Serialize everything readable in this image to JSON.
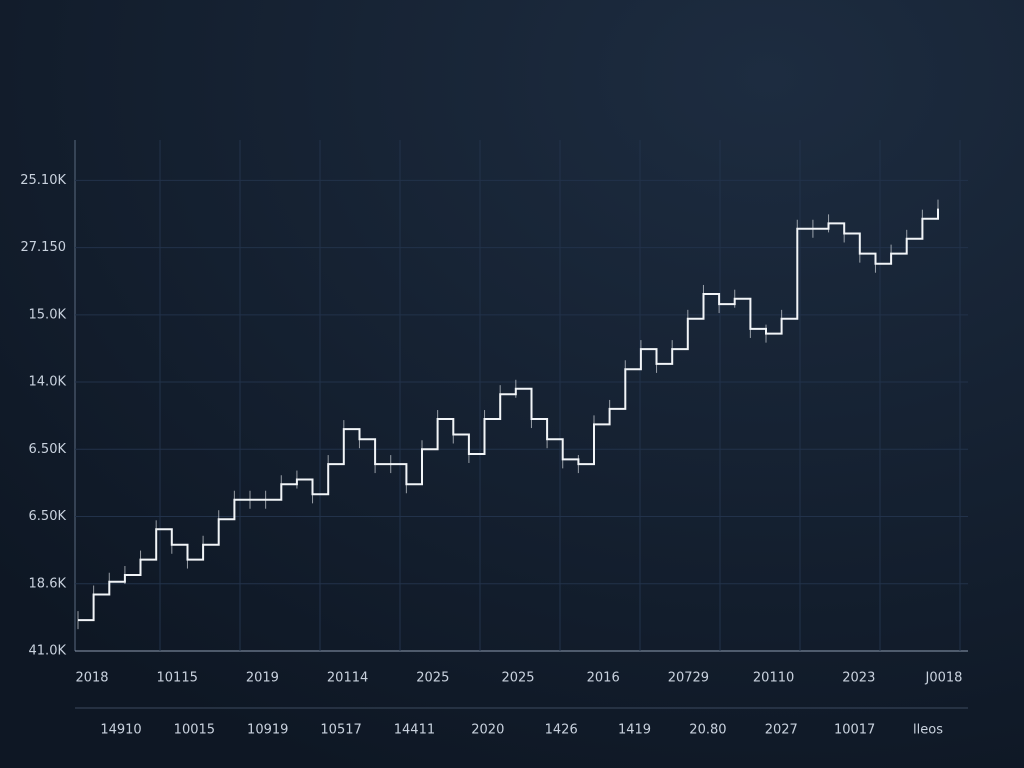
{
  "chart_data": {
    "type": "line",
    "color": "#f2f5f8",
    "grid": true,
    "ylim": [
      0,
      7.6
    ],
    "yticks": [
      {
        "value": 0,
        "label": "41.0K"
      },
      {
        "value": 1,
        "label": "18.6K"
      },
      {
        "value": 2,
        "label": "6.50K"
      },
      {
        "value": 3,
        "label": "6.50K"
      },
      {
        "value": 4,
        "label": "14.0K"
      },
      {
        "value": 5,
        "label": "15.0K"
      },
      {
        "value": 6,
        "label": "27.150"
      },
      {
        "value": 7,
        "label": "25.10K"
      }
    ],
    "x_labels_top": [
      "2018",
      "10115",
      "2019",
      "20114",
      "2025",
      "2025",
      "2016",
      "20729",
      "20110",
      "2023",
      "J0018"
    ],
    "x_labels_bottom": [
      "14910",
      "10015",
      "10919",
      "10517",
      "14411",
      "2020",
      "1426",
      "1419",
      "20.80",
      "2027",
      "10017",
      "lleos"
    ],
    "values": [
      0.46,
      0.84,
      1.03,
      1.13,
      1.36,
      1.81,
      1.58,
      1.36,
      1.58,
      1.96,
      2.25,
      2.25,
      2.25,
      2.48,
      2.55,
      2.33,
      2.78,
      3.3,
      3.15,
      2.78,
      2.78,
      2.48,
      3.0,
      3.45,
      3.22,
      2.93,
      3.45,
      3.82,
      3.9,
      3.45,
      3.15,
      2.85,
      2.78,
      3.37,
      3.6,
      4.19,
      4.49,
      4.27,
      4.49,
      4.94,
      5.31,
      5.16,
      5.24,
      4.79,
      4.72,
      4.94,
      6.28,
      6.28,
      6.36,
      6.21,
      5.91,
      5.76,
      5.91,
      6.13,
      6.43,
      6.58
    ]
  }
}
